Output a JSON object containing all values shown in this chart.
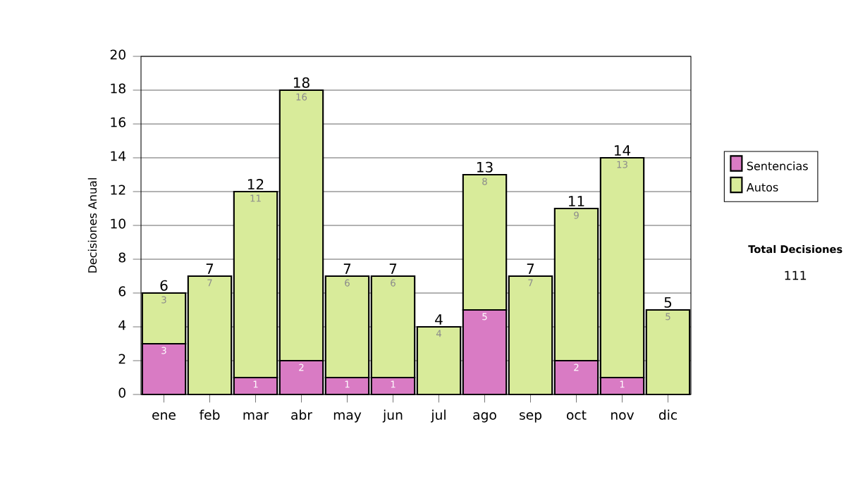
{
  "chart_data": {
    "type": "bar",
    "stacked": true,
    "ylabel": "Decisiones Anual",
    "categories": [
      "ene",
      "feb",
      "mar",
      "abr",
      "may",
      "jun",
      "jul",
      "ago",
      "sep",
      "oct",
      "nov",
      "dic"
    ],
    "series": [
      {
        "name": "Sentencias",
        "color": "#d97bc4",
        "values": [
          3,
          0,
          1,
          2,
          1,
          1,
          0,
          5,
          0,
          2,
          1,
          0
        ],
        "value_labels": [
          "3",
          null,
          "1",
          "2",
          "1",
          "1",
          null,
          "5",
          null,
          "2",
          "1",
          null
        ]
      },
      {
        "name": "Autos",
        "color": "#d8eb9a",
        "values": [
          3,
          7,
          11,
          16,
          6,
          6,
          4,
          8,
          7,
          9,
          13,
          5
        ],
        "value_labels": [
          "3",
          "7",
          "11",
          "16",
          "6",
          "6",
          "4",
          "8",
          "7",
          "9",
          "13",
          "5"
        ]
      }
    ],
    "totals": [
      "6",
      "7",
      "12",
      "18",
      "7",
      "7",
      "4",
      "13",
      "7",
      "11",
      "14",
      "5"
    ],
    "ylim": [
      0,
      20
    ],
    "yticks": [
      0,
      2,
      4,
      6,
      8,
      10,
      12,
      14,
      16,
      18,
      20
    ],
    "grid": "y",
    "legend": "right",
    "annotations": [
      "Total Decisiones",
      "111"
    ]
  }
}
